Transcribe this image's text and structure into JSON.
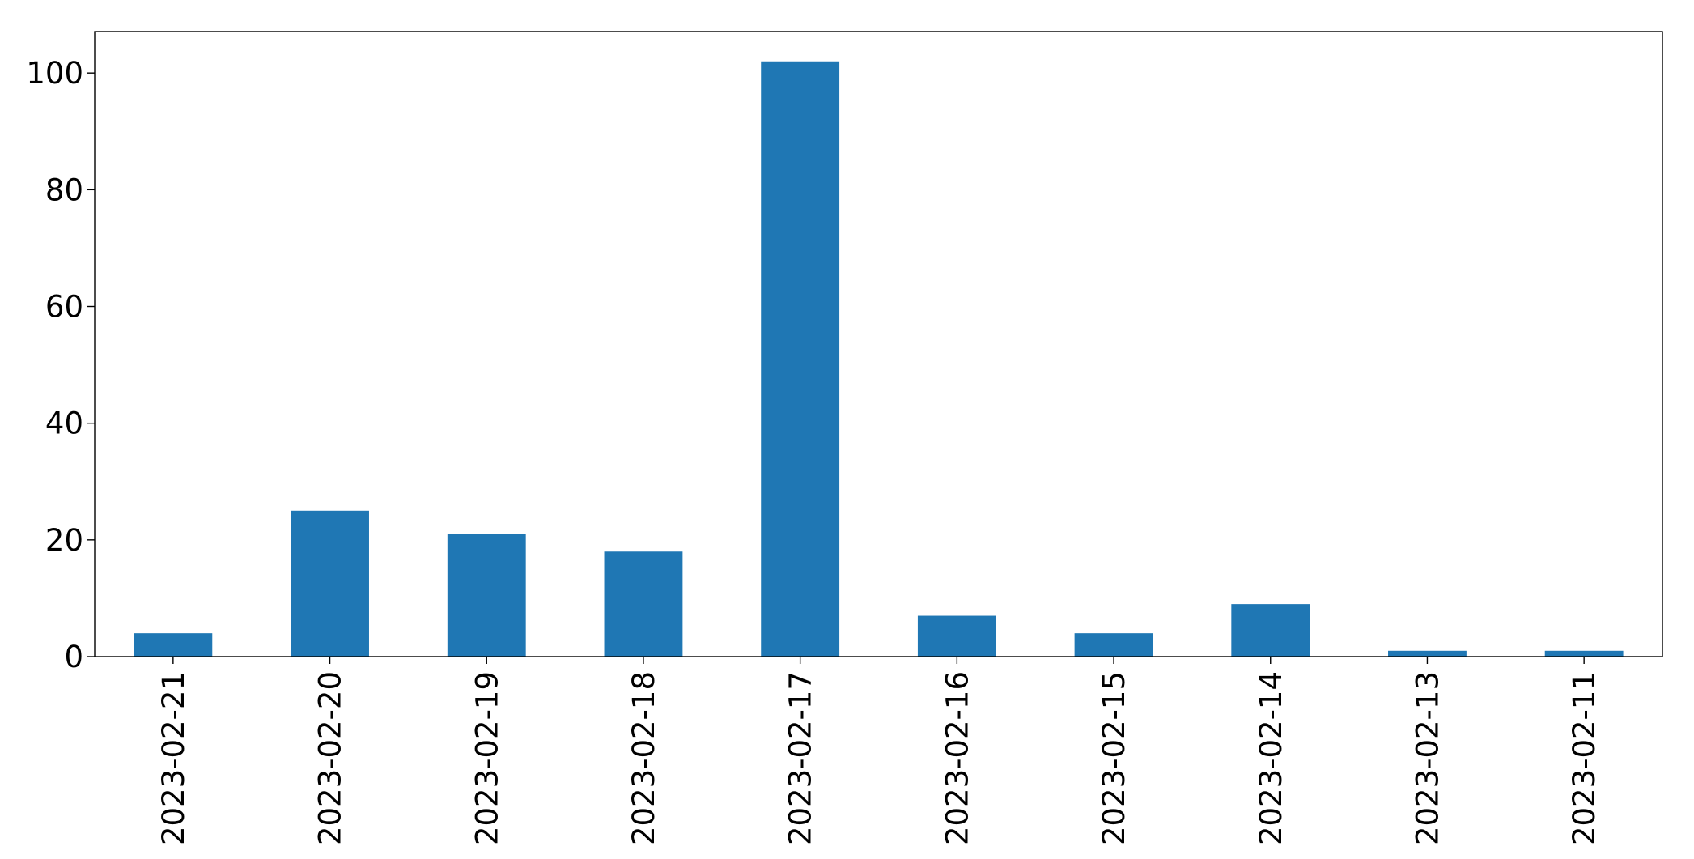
{
  "chart_data": {
    "type": "bar",
    "title": "",
    "xlabel": "",
    "ylabel": "",
    "categories": [
      "2023-02-21",
      "2023-02-20",
      "2023-02-19",
      "2023-02-18",
      "2023-02-17",
      "2023-02-16",
      "2023-02-15",
      "2023-02-14",
      "2023-02-13",
      "2023-02-11"
    ],
    "values": [
      4,
      25,
      21,
      18,
      102,
      7,
      4,
      9,
      1,
      1
    ],
    "ylim": [
      0,
      107.1
    ],
    "yticks": [
      0,
      20,
      40,
      60,
      80,
      100
    ],
    "ytick_labels": [
      "0",
      "20",
      "40",
      "60",
      "80",
      "100"
    ],
    "grid": false,
    "legend": "none",
    "colors": {
      "bar": "#1f77b4",
      "axis": "#000000",
      "background": "#ffffff"
    }
  }
}
